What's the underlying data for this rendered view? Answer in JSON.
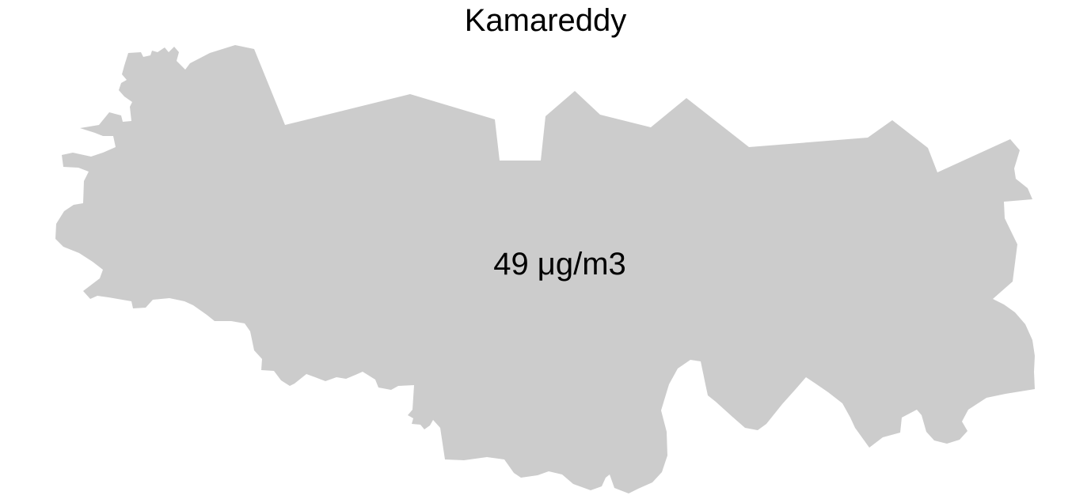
{
  "map": {
    "title": "Kamareddy",
    "value_label": "49 μg/m3",
    "fill_color": "#cccccc",
    "background_color": "#ffffff"
  }
}
